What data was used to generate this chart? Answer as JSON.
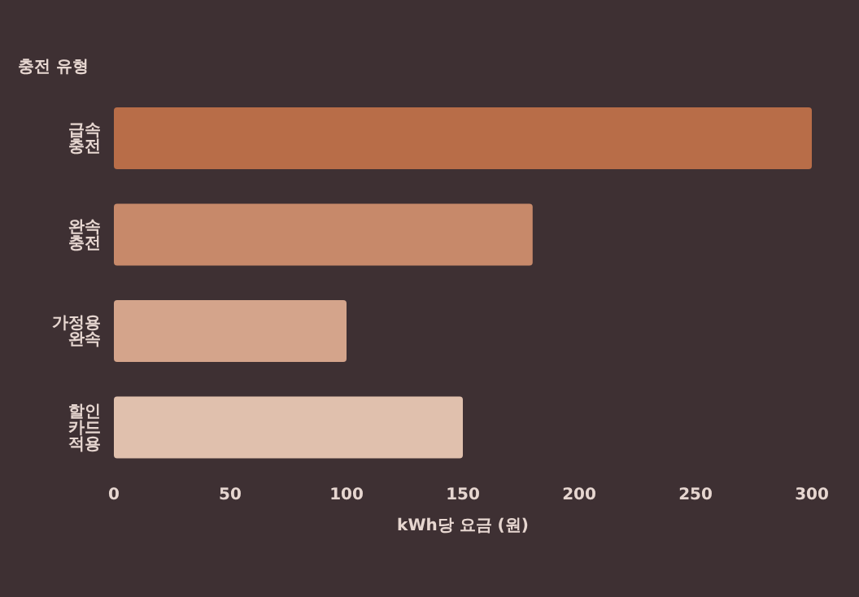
{
  "chart_data": {
    "type": "bar",
    "orientation": "horizontal",
    "ylabel": "충전 유형",
    "xlabel": "kWh당 요금 (원)",
    "categories": [
      "급속 충전",
      "완속 충전",
      "가정용 완속",
      "할인 카드 적용"
    ],
    "values": [
      300,
      180,
      100,
      150
    ],
    "colors": [
      "#b86d48",
      "#c7896a",
      "#d4a48b",
      "#e0c0ad"
    ],
    "xlim": [
      0,
      300
    ],
    "xticks": [
      0,
      50,
      100,
      150,
      200,
      250,
      300
    ],
    "grid": false,
    "legend": false
  }
}
